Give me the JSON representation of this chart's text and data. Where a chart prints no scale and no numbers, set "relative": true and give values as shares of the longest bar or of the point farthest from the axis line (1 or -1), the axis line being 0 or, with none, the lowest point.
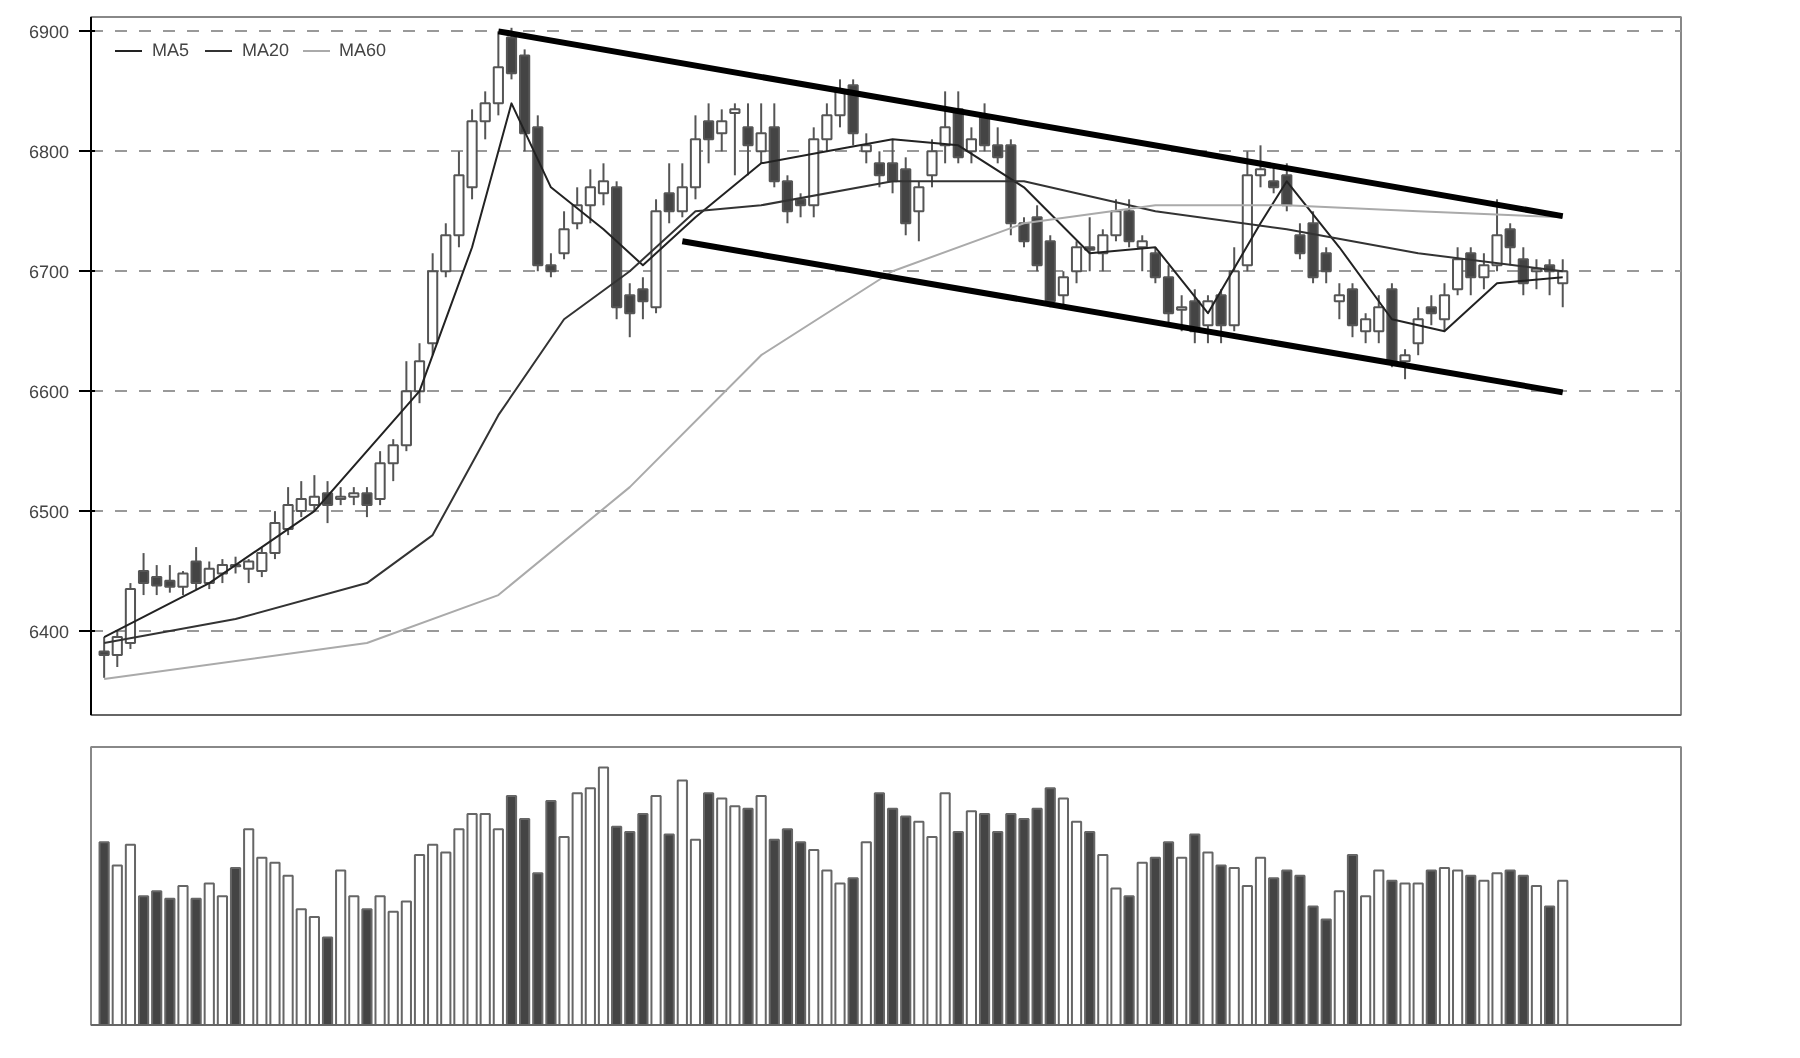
{
  "chart_data": [
    {
      "type": "candlestick",
      "categories": [
        null,
        null,
        null,
        null,
        null,
        null,
        null,
        null,
        null,
        null,
        null,
        null,
        null,
        null,
        null,
        null,
        null,
        null,
        null,
        null,
        null,
        null,
        null,
        null,
        null,
        null,
        null,
        null,
        null,
        null,
        null,
        null,
        null,
        null,
        null,
        null,
        null,
        null,
        null,
        null,
        null,
        null,
        null,
        null,
        null,
        null,
        null,
        null,
        null,
        null,
        null,
        null,
        null,
        null,
        null,
        null,
        null,
        null,
        null,
        null,
        null,
        null,
        null,
        null,
        null,
        null,
        null,
        null,
        null,
        null,
        null,
        null,
        null,
        null,
        null,
        null,
        null,
        null,
        null,
        null,
        null,
        null,
        null,
        null,
        null,
        null,
        null,
        null,
        null,
        null,
        null,
        null,
        null,
        null,
        null,
        null,
        null,
        null,
        null,
        null,
        null,
        null,
        null,
        null,
        null,
        null,
        null,
        null,
        null,
        null,
        null,
        null
      ],
      "ohlc": [
        [
          6383,
          6395,
          6361,
          6380
        ],
        [
          6380,
          6400,
          6370,
          6395
        ],
        [
          6390,
          6440,
          6385,
          6435
        ],
        [
          6450,
          6465,
          6430,
          6440
        ],
        [
          6445,
          6455,
          6430,
          6438
        ],
        [
          6442,
          6455,
          6432,
          6437
        ],
        [
          6437,
          6450,
          6430,
          6448
        ],
        [
          6458,
          6470,
          6435,
          6440
        ],
        [
          6440,
          6458,
          6435,
          6452
        ],
        [
          6448,
          6460,
          6440,
          6455
        ],
        [
          6455,
          6462,
          6448,
          6454
        ],
        [
          6452,
          6460,
          6440,
          6458
        ],
        [
          6450,
          6470,
          6445,
          6465
        ],
        [
          6465,
          6500,
          6460,
          6490
        ],
        [
          6485,
          6520,
          6480,
          6505
        ],
        [
          6500,
          6525,
          6495,
          6510
        ],
        [
          6505,
          6530,
          6500,
          6512
        ],
        [
          6515,
          6525,
          6490,
          6505
        ],
        [
          6510,
          6520,
          6505,
          6512
        ],
        [
          6512,
          6520,
          6505,
          6515
        ],
        [
          6515,
          6520,
          6495,
          6505
        ],
        [
          6510,
          6550,
          6505,
          6540
        ],
        [
          6540,
          6560,
          6525,
          6555
        ],
        [
          6555,
          6625,
          6550,
          6600
        ],
        [
          6600,
          6640,
          6590,
          6625
        ],
        [
          6640,
          6715,
          6630,
          6700
        ],
        [
          6700,
          6740,
          6695,
          6730
        ],
        [
          6730,
          6800,
          6720,
          6780
        ],
        [
          6770,
          6835,
          6760,
          6825
        ],
        [
          6825,
          6850,
          6810,
          6840
        ],
        [
          6840,
          6900,
          6830,
          6870
        ],
        [
          6895,
          6903,
          6860,
          6865
        ],
        [
          6880,
          6885,
          6800,
          6815
        ],
        [
          6820,
          6830,
          6700,
          6705
        ],
        [
          6705,
          6715,
          6695,
          6700
        ],
        [
          6715,
          6750,
          6710,
          6735
        ],
        [
          6740,
          6770,
          6735,
          6755
        ],
        [
          6755,
          6785,
          6740,
          6770
        ],
        [
          6765,
          6790,
          6755,
          6775
        ],
        [
          6770,
          6775,
          6660,
          6670
        ],
        [
          6680,
          6690,
          6645,
          6665
        ],
        [
          6685,
          6695,
          6660,
          6675
        ],
        [
          6670,
          6760,
          6665,
          6750
        ],
        [
          6765,
          6790,
          6740,
          6750
        ],
        [
          6750,
          6790,
          6745,
          6770
        ],
        [
          6770,
          6830,
          6760,
          6810
        ],
        [
          6825,
          6840,
          6790,
          6810
        ],
        [
          6815,
          6835,
          6800,
          6825
        ],
        [
          6832,
          6840,
          6780,
          6835
        ],
        [
          6820,
          6840,
          6780,
          6805
        ],
        [
          6800,
          6840,
          6790,
          6815
        ],
        [
          6820,
          6840,
          6770,
          6775
        ],
        [
          6775,
          6780,
          6740,
          6750
        ],
        [
          6760,
          6765,
          6745,
          6755
        ],
        [
          6755,
          6820,
          6745,
          6810
        ],
        [
          6810,
          6840,
          6800,
          6830
        ],
        [
          6830,
          6860,
          6820,
          6850
        ],
        [
          6855,
          6860,
          6805,
          6815
        ],
        [
          6800,
          6815,
          6790,
          6805
        ],
        [
          6790,
          6800,
          6770,
          6780
        ],
        [
          6790,
          6810,
          6765,
          6775
        ],
        [
          6785,
          6795,
          6730,
          6740
        ],
        [
          6750,
          6775,
          6725,
          6770
        ],
        [
          6780,
          6810,
          6770,
          6800
        ],
        [
          6805,
          6850,
          6790,
          6820
        ],
        [
          6835,
          6850,
          6790,
          6795
        ],
        [
          6800,
          6820,
          6790,
          6810
        ],
        [
          6830,
          6840,
          6800,
          6805
        ],
        [
          6805,
          6820,
          6790,
          6795
        ],
        [
          6805,
          6810,
          6730,
          6740
        ],
        [
          6740,
          6745,
          6720,
          6725
        ],
        [
          6745,
          6755,
          6700,
          6705
        ],
        [
          6725,
          6730,
          6670,
          6675
        ],
        [
          6680,
          6700,
          6670,
          6695
        ],
        [
          6700,
          6725,
          6690,
          6720
        ],
        [
          6720,
          6745,
          6700,
          6718
        ],
        [
          6715,
          6735,
          6700,
          6730
        ],
        [
          6730,
          6760,
          6725,
          6750
        ],
        [
          6750,
          6760,
          6720,
          6725
        ],
        [
          6720,
          6730,
          6700,
          6725
        ],
        [
          6715,
          6720,
          6690,
          6695
        ],
        [
          6695,
          6705,
          6655,
          6665
        ],
        [
          6668,
          6680,
          6650,
          6670
        ],
        [
          6675,
          6685,
          6640,
          6650
        ],
        [
          6655,
          6680,
          6640,
          6675
        ],
        [
          6680,
          6685,
          6640,
          6655
        ],
        [
          6655,
          6720,
          6650,
          6700
        ],
        [
          6705,
          6800,
          6700,
          6780
        ],
        [
          6780,
          6805,
          6770,
          6785
        ],
        [
          6775,
          6790,
          6765,
          6770
        ],
        [
          6780,
          6790,
          6750,
          6755
        ],
        [
          6730,
          6740,
          6710,
          6715
        ],
        [
          6740,
          6750,
          6690,
          6695
        ],
        [
          6715,
          6720,
          6690,
          6700
        ],
        [
          6675,
          6690,
          6660,
          6680
        ],
        [
          6685,
          6690,
          6645,
          6655
        ],
        [
          6650,
          6665,
          6640,
          6660
        ],
        [
          6650,
          6680,
          6640,
          6670
        ],
        [
          6685,
          6690,
          6620,
          6625
        ],
        [
          6625,
          6635,
          6610,
          6630
        ],
        [
          6640,
          6670,
          6630,
          6660
        ],
        [
          6670,
          6680,
          6655,
          6665
        ],
        [
          6660,
          6690,
          6650,
          6680
        ],
        [
          6685,
          6720,
          6680,
          6710
        ],
        [
          6715,
          6720,
          6680,
          6695
        ],
        [
          6695,
          6715,
          6685,
          6705
        ],
        [
          6705,
          6760,
          6700,
          6730
        ],
        [
          6735,
          6740,
          6705,
          6720
        ],
        [
          6710,
          6720,
          6680,
          6690
        ],
        [
          6700,
          6710,
          6685,
          6702
        ],
        [
          6705,
          6710,
          6680,
          6700
        ],
        [
          6690,
          6710,
          6670,
          6700
        ]
      ],
      "series": [
        {
          "name": "MA5",
          "type": "line",
          "color": "#222222",
          "values": [
            6395,
            null,
            null,
            null,
            null,
            null,
            null,
            null,
            6440,
            null,
            null,
            null,
            null,
            null,
            null,
            null,
            6500,
            null,
            null,
            null,
            null,
            null,
            null,
            null,
            6600,
            null,
            null,
            null,
            6720,
            null,
            null,
            6840,
            null,
            null,
            6770,
            null,
            null,
            null,
            6735,
            null,
            null,
            6705,
            null,
            null,
            null,
            6745,
            null,
            null,
            null,
            null,
            6790,
            null,
            null,
            null,
            null,
            6800,
            null,
            null,
            null,
            null,
            6810,
            null,
            null,
            null,
            null,
            6805,
            null,
            null,
            null,
            null,
            6770,
            null,
            null,
            null,
            null,
            6715,
            null,
            null,
            null,
            null,
            6720,
            null,
            null,
            null,
            6665,
            null,
            null,
            null,
            6740,
            null,
            6775,
            null,
            null,
            null,
            6720,
            null,
            null,
            null,
            6660,
            null,
            null,
            null,
            6650,
            null,
            null,
            null,
            6690,
            null,
            null,
            null,
            null,
            6695
          ]
        },
        {
          "name": "MA20",
          "type": "line",
          "color": "#333333",
          "values": [
            6390,
            null,
            null,
            null,
            null,
            null,
            null,
            null,
            null,
            null,
            6410,
            null,
            null,
            null,
            null,
            null,
            null,
            null,
            null,
            null,
            6440,
            null,
            null,
            null,
            null,
            6480,
            null,
            null,
            null,
            null,
            6580,
            null,
            null,
            null,
            null,
            6660,
            null,
            null,
            null,
            null,
            6700,
            null,
            null,
            null,
            null,
            6750,
            null,
            null,
            null,
            null,
            6755,
            null,
            null,
            null,
            null,
            null,
            null,
            null,
            null,
            null,
            6775,
            null,
            null,
            null,
            null,
            null,
            null,
            null,
            null,
            null,
            6775,
            null,
            null,
            null,
            null,
            null,
            null,
            null,
            null,
            null,
            6750,
            null,
            null,
            null,
            null,
            null,
            null,
            null,
            null,
            null,
            6735,
            null,
            null,
            null,
            null,
            null,
            null,
            null,
            null,
            null,
            6715,
            null,
            null,
            null,
            null,
            null,
            null,
            null,
            null,
            null,
            null,
            6700
          ]
        },
        {
          "name": "MA60",
          "type": "line",
          "color": "#aaaaaa",
          "values": [
            6360,
            null,
            null,
            null,
            null,
            null,
            null,
            null,
            null,
            null,
            null,
            null,
            null,
            null,
            null,
            null,
            null,
            null,
            null,
            null,
            6390,
            null,
            null,
            null,
            null,
            null,
            null,
            null,
            null,
            null,
            6430,
            null,
            null,
            null,
            null,
            null,
            null,
            null,
            null,
            null,
            6520,
            null,
            null,
            null,
            null,
            null,
            null,
            null,
            null,
            null,
            6630,
            null,
            null,
            null,
            null,
            null,
            null,
            null,
            null,
            null,
            6700,
            null,
            null,
            null,
            null,
            null,
            null,
            null,
            null,
            null,
            6740,
            null,
            null,
            null,
            null,
            null,
            null,
            null,
            null,
            null,
            6755,
            null,
            null,
            null,
            null,
            null,
            null,
            null,
            null,
            null,
            6755,
            null,
            null,
            null,
            null,
            null,
            null,
            null,
            null,
            null,
            6750,
            null,
            null,
            null,
            null,
            null,
            null,
            null,
            null,
            null,
            null,
            6745
          ]
        },
        {
          "type": "line",
          "color": "#000000",
          "values": [
            null,
            null,
            null,
            null,
            null,
            null,
            null,
            null,
            null,
            null,
            null,
            null,
            null,
            null,
            null,
            null,
            null,
            null,
            null,
            null,
            null,
            null,
            null,
            null,
            null,
            null,
            null,
            null,
            null,
            null,
            6900,
            null,
            null,
            null,
            null,
            null,
            null,
            null,
            null,
            null,
            null,
            null,
            null,
            null,
            null,
            null,
            null,
            null,
            null,
            null,
            null,
            null,
            null,
            null,
            null,
            null,
            null,
            null,
            null,
            null,
            null,
            null,
            null,
            null,
            null,
            null,
            null,
            null,
            null,
            null,
            null,
            null,
            null,
            null,
            null,
            null,
            null,
            null,
            null,
            null,
            null,
            null,
            null,
            null,
            null,
            null,
            null,
            null,
            null,
            null,
            null,
            null,
            null,
            null,
            null,
            null,
            null,
            null,
            null,
            null,
            null,
            null,
            null,
            null,
            null,
            null,
            null,
            null,
            null,
            null,
            null,
            6746
          ]
        },
        {
          "type": "line",
          "color": "#000000",
          "values": [
            null,
            null,
            null,
            null,
            null,
            null,
            null,
            null,
            null,
            null,
            null,
            null,
            null,
            null,
            null,
            null,
            null,
            null,
            null,
            null,
            null,
            null,
            null,
            null,
            null,
            null,
            null,
            null,
            null,
            null,
            null,
            null,
            null,
            null,
            null,
            null,
            null,
            null,
            null,
            null,
            null,
            null,
            null,
            null,
            6725,
            null,
            null,
            null,
            null,
            null,
            null,
            null,
            null,
            null,
            null,
            null,
            null,
            null,
            null,
            null,
            null,
            null,
            null,
            null,
            null,
            null,
            null,
            null,
            null,
            null,
            null,
            null,
            null,
            null,
            null,
            null,
            null,
            null,
            null,
            null,
            null,
            null,
            null,
            null,
            null,
            null,
            null,
            null,
            null,
            null,
            null,
            null,
            null,
            null,
            null,
            null,
            null,
            null,
            null,
            null,
            null,
            null,
            null,
            null,
            null,
            null,
            null,
            null,
            null,
            null,
            null,
            6599
          ]
        }
      ],
      "ylim": [
        6330,
        6912
      ],
      "yticks": [
        6400,
        6500,
        6600,
        6700,
        6800,
        6900
      ],
      "grid": "y",
      "legend": "top left",
      "tick_labels": "y"
    },
    {
      "type": "bar",
      "relative": true,
      "categories": [
        null,
        null,
        null,
        null,
        null,
        null,
        null,
        null,
        null,
        null,
        null,
        null,
        null,
        null,
        null,
        null,
        null,
        null,
        null,
        null,
        null,
        null,
        null,
        null,
        null,
        null,
        null,
        null,
        null,
        null,
        null,
        null,
        null,
        null,
        null,
        null,
        null,
        null,
        null,
        null,
        null,
        null,
        null,
        null,
        null,
        null,
        null,
        null,
        null,
        null,
        null,
        null,
        null,
        null,
        null,
        null,
        null,
        null,
        null,
        null,
        null,
        null,
        null,
        null,
        null,
        null,
        null,
        null,
        null,
        null,
        null,
        null,
        null,
        null,
        null,
        null,
        null,
        null,
        null,
        null,
        null,
        null,
        null,
        null,
        null,
        null,
        null,
        null,
        null,
        null,
        null,
        null,
        null,
        null,
        null,
        null,
        null,
        null,
        null,
        null,
        null,
        null,
        null,
        null,
        null,
        null,
        null,
        null,
        null,
        null,
        null,
        null
      ],
      "values": [
        0.71,
        0.62,
        0.7,
        0.5,
        0.52,
        0.49,
        0.54,
        0.49,
        0.55,
        0.5,
        0.61,
        0.76,
        0.65,
        0.63,
        0.58,
        0.45,
        0.42,
        0.34,
        0.6,
        0.5,
        0.45,
        0.5,
        0.44,
        0.48,
        0.66,
        0.7,
        0.67,
        0.76,
        0.82,
        0.82,
        0.76,
        0.89,
        0.8,
        0.59,
        0.87,
        0.73,
        0.9,
        0.92,
        1,
        0.77,
        0.75,
        0.82,
        0.89,
        0.74,
        0.95,
        0.72,
        0.9,
        0.88,
        0.85,
        0.84,
        0.89,
        0.72,
        0.76,
        0.71,
        0.68,
        0.6,
        0.55,
        0.57,
        0.71,
        0.9,
        0.84,
        0.81,
        0.79,
        0.73,
        0.9,
        0.75,
        0.83,
        0.82,
        0.75,
        0.82,
        0.8,
        0.84,
        0.92,
        0.88,
        0.79,
        0.75,
        0.66,
        0.53,
        0.5,
        0.63,
        0.65,
        0.71,
        0.65,
        0.74,
        0.67,
        0.62,
        0.61,
        0.54,
        0.65,
        0.57,
        0.6,
        0.58,
        0.46,
        0.41,
        0.52,
        0.66,
        0.5,
        0.6,
        0.56,
        0.55,
        0.55,
        0.6,
        0.61,
        0.6,
        0.58,
        0.56,
        0.59,
        0.6,
        0.58,
        0.54,
        0.46,
        0.56
      ],
      "colors": [
        "#444444",
        "#ffffff",
        "#ffffff",
        "#444444",
        "#444444",
        "#444444",
        "#ffffff",
        "#444444",
        "#ffffff",
        "#ffffff",
        "#444444",
        "#ffffff",
        "#ffffff",
        "#ffffff",
        "#ffffff",
        "#ffffff",
        "#ffffff",
        "#444444",
        "#ffffff",
        "#ffffff",
        "#444444",
        "#ffffff",
        "#ffffff",
        "#ffffff",
        "#ffffff",
        "#ffffff",
        "#ffffff",
        "#ffffff",
        "#ffffff",
        "#ffffff",
        "#ffffff",
        "#444444",
        "#444444",
        "#444444",
        "#444444",
        "#ffffff",
        "#ffffff",
        "#ffffff",
        "#ffffff",
        "#444444",
        "#444444",
        "#444444",
        "#ffffff",
        "#444444",
        "#ffffff",
        "#ffffff",
        "#444444",
        "#ffffff",
        "#ffffff",
        "#444444",
        "#ffffff",
        "#444444",
        "#444444",
        "#444444",
        "#ffffff",
        "#ffffff",
        "#ffffff",
        "#444444",
        "#ffffff",
        "#444444",
        "#444444",
        "#444444",
        "#ffffff",
        "#ffffff",
        "#ffffff",
        "#444444",
        "#ffffff",
        "#444444",
        "#444444",
        "#444444",
        "#444444",
        "#444444",
        "#444444",
        "#ffffff",
        "#ffffff",
        "#444444",
        "#ffffff",
        "#ffffff",
        "#444444",
        "#ffffff",
        "#444444",
        "#444444",
        "#ffffff",
        "#444444",
        "#ffffff",
        "#444444",
        "#ffffff",
        "#ffffff",
        "#ffffff",
        "#444444",
        "#444444",
        "#444444",
        "#444444",
        "#444444",
        "#ffffff",
        "#444444",
        "#ffffff",
        "#ffffff",
        "#444444",
        "#ffffff",
        "#ffffff",
        "#444444",
        "#ffffff",
        "#ffffff",
        "#444444",
        "#ffffff",
        "#ffffff",
        "#444444",
        "#444444",
        "#ffffff",
        "#444444",
        "#ffffff"
      ],
      "tick_labels": false,
      "grid": false
    }
  ]
}
